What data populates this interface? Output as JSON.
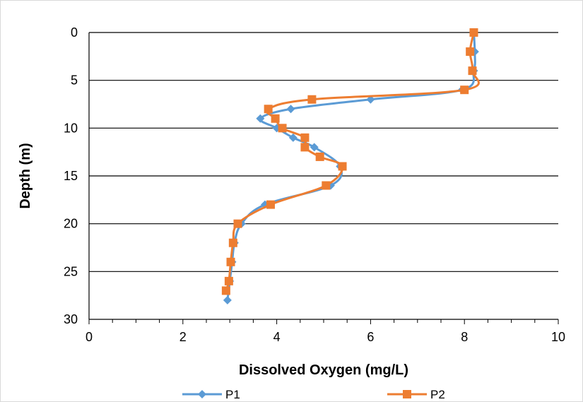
{
  "chart_data": {
    "type": "line",
    "title": "",
    "xlabel": "Dissolved Oxygen (mg/L)",
    "ylabel": "Depth (m)",
    "xlim": [
      0,
      10
    ],
    "ylim": [
      0,
      30
    ],
    "y_inverted": true,
    "x_ticks": [
      "0",
      "2",
      "4",
      "6",
      "8",
      "10"
    ],
    "y_ticks": [
      "0",
      "5",
      "10",
      "15",
      "20",
      "25",
      "30"
    ],
    "grid": "horizontal",
    "legend_position": "bottom",
    "series": [
      {
        "name": "P1",
        "color": "#5b9bd5",
        "marker": "diamond",
        "points": [
          {
            "x": 8.2,
            "y": 0
          },
          {
            "x": 8.22,
            "y": 2
          },
          {
            "x": 8.2,
            "y": 4
          },
          {
            "x": 7.95,
            "y": 6
          },
          {
            "x": 6.0,
            "y": 7
          },
          {
            "x": 4.3,
            "y": 8
          },
          {
            "x": 3.65,
            "y": 9
          },
          {
            "x": 4.0,
            "y": 10
          },
          {
            "x": 4.35,
            "y": 11
          },
          {
            "x": 4.8,
            "y": 12
          },
          {
            "x": 5.35,
            "y": 14
          },
          {
            "x": 5.15,
            "y": 16
          },
          {
            "x": 3.75,
            "y": 18
          },
          {
            "x": 3.25,
            "y": 20
          },
          {
            "x": 3.1,
            "y": 22
          },
          {
            "x": 3.05,
            "y": 24
          },
          {
            "x": 3.0,
            "y": 26
          },
          {
            "x": 2.95,
            "y": 28
          }
        ]
      },
      {
        "name": "P2",
        "color": "#ed7d31",
        "marker": "square",
        "points": [
          {
            "x": 8.2,
            "y": 0
          },
          {
            "x": 8.12,
            "y": 2
          },
          {
            "x": 8.17,
            "y": 4
          },
          {
            "x": 8.0,
            "y": 6
          },
          {
            "x": 4.75,
            "y": 7
          },
          {
            "x": 3.82,
            "y": 8
          },
          {
            "x": 3.97,
            "y": 9
          },
          {
            "x": 4.12,
            "y": 10
          },
          {
            "x": 4.6,
            "y": 11
          },
          {
            "x": 4.6,
            "y": 12
          },
          {
            "x": 4.92,
            "y": 13
          },
          {
            "x": 5.4,
            "y": 14
          },
          {
            "x": 5.05,
            "y": 16
          },
          {
            "x": 3.87,
            "y": 18
          },
          {
            "x": 3.17,
            "y": 20
          },
          {
            "x": 3.07,
            "y": 22
          },
          {
            "x": 3.02,
            "y": 24
          },
          {
            "x": 2.98,
            "y": 26
          },
          {
            "x": 2.92,
            "y": 27
          }
        ]
      }
    ]
  }
}
